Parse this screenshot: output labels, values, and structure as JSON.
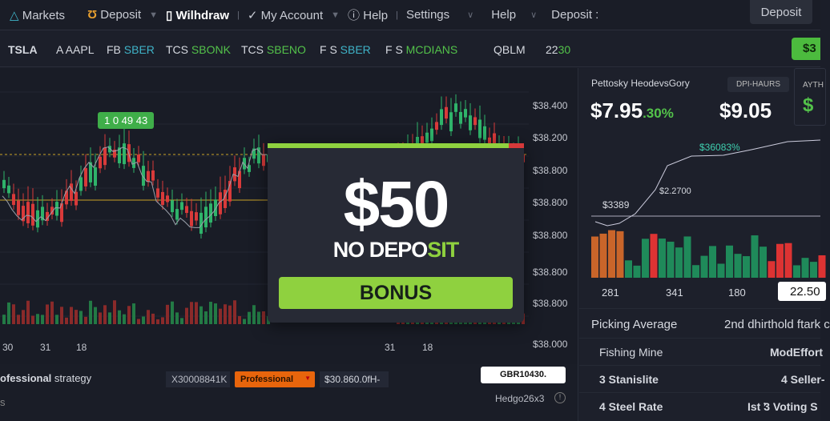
{
  "nav": {
    "items": [
      {
        "label": "Markets",
        "icon": "triangle-icon"
      },
      {
        "label": "Deposit",
        "icon": "magnet-icon"
      },
      {
        "label": "Wilhdraw",
        "icon": "clipboard-icon"
      },
      {
        "label": "My Account",
        "icon": "check-icon"
      },
      {
        "label": "Help",
        "icon": "info-icon"
      },
      {
        "label": "Settings"
      },
      {
        "label": "Help"
      },
      {
        "label": "Deposit :"
      }
    ],
    "deposit_button": "Deposit"
  },
  "ticker": {
    "items": [
      {
        "a": "TSLA",
        "b": ""
      },
      {
        "a": "A AAPL",
        "b": ""
      },
      {
        "a": "FB",
        "b": "SBER"
      },
      {
        "a": "TCS",
        "b": "SBONK"
      },
      {
        "a": "TCS",
        "b": "SBENO"
      },
      {
        "a": "F S",
        "b": "SBER"
      },
      {
        "a": "F S",
        "b": "MCDIANS"
      },
      {
        "a": "QBLM",
        "b": ""
      },
      {
        "a": "22",
        "b": "30"
      }
    ],
    "action": "$3"
  },
  "chart": {
    "tag": "1 0 49 43",
    "price_axis": [
      "$38.400",
      "$38.200",
      "$38.800",
      "$38.800",
      "$38.800",
      "$38.800",
      "$38.800",
      "$38.000"
    ],
    "dates": [
      "30",
      "31",
      "18",
      "31",
      "18"
    ],
    "colors": {
      "up": "#2fb36a",
      "down": "#d93a3a",
      "ma": "#c9a227"
    }
  },
  "promo": {
    "amount": "$50",
    "sub_a": "NO DEPO",
    "sub_b": "SIT",
    "button": "BONUS",
    "accent": "#8fd13f"
  },
  "bottom": {
    "strategy_bold": "ofessional",
    "strategy": " strategy",
    "sub": "s",
    "code": "X30008841K",
    "select": "Professional",
    "price": "$30.860.0fH-",
    "field": "GBR10430.",
    "hedge": "Hedgo26x3"
  },
  "right": {
    "title": "Pettosky HeodevsGory",
    "badge": "DPI-HAURS",
    "badge2": "AYTH",
    "price1": "$7.95",
    "pct": ".30%",
    "price2": "$9.05",
    "chart_labels": {
      "top": "$36083%",
      "mid": "$2.2700",
      "low": "$3389"
    },
    "x_labels": [
      "281",
      "341",
      "180"
    ],
    "x_box": "22.50",
    "rows": [
      {
        "l": "Picking Average",
        "r": "2nd dhirthold  ftark c"
      },
      {
        "l": "Fishing Mine",
        "r": "ModEffort"
      },
      {
        "l": "3 Stanislite",
        "r": "4 Seller-"
      },
      {
        "l": "4 Steel Rate",
        "r": "Ist ̕3 Voting S"
      }
    ]
  }
}
